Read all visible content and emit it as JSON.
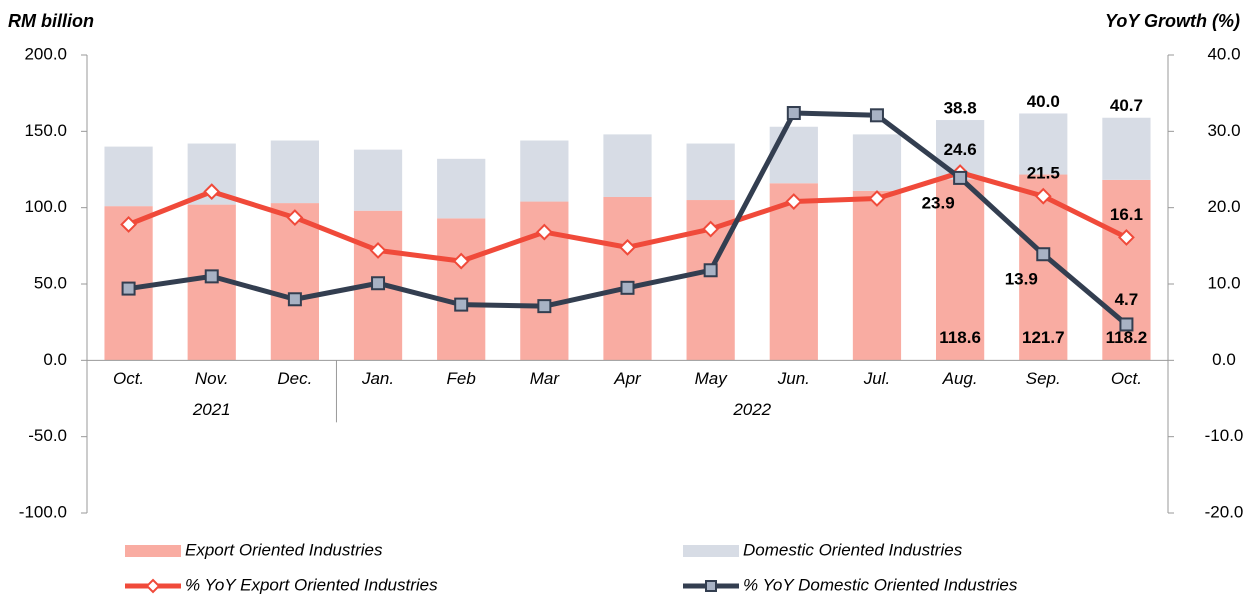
{
  "chart_data": {
    "type": "bar-line",
    "y_label": "RM billion",
    "y2_label": "YoY Growth (%)",
    "categories": [
      "Oct.",
      "Nov.",
      "Dec.",
      "Jan.",
      "Feb",
      "Mar",
      "Apr",
      "May",
      "Jun.",
      "Jul.",
      "Aug.",
      "Sep.",
      "Oct."
    ],
    "groups": [
      {
        "label": "2021",
        "start": 0,
        "end": 2
      },
      {
        "label": "2022",
        "start": 3,
        "end": 12
      }
    ],
    "ylim": [
      -100,
      200
    ],
    "yticks": [
      {
        "value": -100,
        "label": "-100.0"
      },
      {
        "value": -50,
        "label": "-50.0"
      },
      {
        "value": 0,
        "label": "0.0"
      },
      {
        "value": 50,
        "label": "50.0"
      },
      {
        "value": 100,
        "label": "100.0"
      },
      {
        "value": 150,
        "label": "150.0"
      },
      {
        "value": 200,
        "label": "200.0"
      }
    ],
    "y2lim": [
      -20,
      40
    ],
    "y2ticks": [
      {
        "value": -20,
        "label": "-20.0"
      },
      {
        "value": -10,
        "label": "-10.0"
      },
      {
        "value": 0,
        "label": "0.0"
      },
      {
        "value": 10,
        "label": "10.0"
      },
      {
        "value": 20,
        "label": "20.0"
      },
      {
        "value": 30,
        "label": "30.0"
      },
      {
        "value": 40,
        "label": "40.0"
      }
    ],
    "series": [
      {
        "name": "Export Oriented Industries",
        "kind": "bar",
        "color": "#f9aca2",
        "label_color": "#c00000",
        "values": [
          101,
          102,
          103,
          98,
          93,
          104,
          107,
          105,
          116,
          111,
          118.6,
          121.7,
          118.2
        ],
        "value_labels": [
          null,
          null,
          null,
          null,
          null,
          null,
          null,
          null,
          null,
          null,
          "118.6",
          "121.7",
          "118.2"
        ]
      },
      {
        "name": "Domestic Oriented Industries",
        "kind": "bar",
        "color": "#d7dce5",
        "label_color": "#2f3e63",
        "values": [
          39,
          40,
          41,
          40,
          39,
          40,
          41,
          37,
          37,
          37,
          38.8,
          40.0,
          40.7
        ],
        "value_labels": [
          null,
          null,
          null,
          null,
          null,
          null,
          null,
          null,
          null,
          null,
          "38.8",
          "40.0",
          "40.7"
        ]
      },
      {
        "name": "% YoY Export Oriented Industries",
        "kind": "line",
        "axis": "y2",
        "marker": "diamond",
        "color": "#f04a3a",
        "label_color": "#000000",
        "values": [
          17.8,
          22.1,
          18.7,
          14.4,
          13.0,
          16.8,
          14.8,
          17.2,
          20.8,
          21.2,
          24.6,
          21.5,
          16.1
        ],
        "value_labels": [
          null,
          null,
          null,
          null,
          null,
          null,
          null,
          null,
          null,
          null,
          "24.6",
          "21.5",
          "16.1"
        ]
      },
      {
        "name": "% YoY Domestic Oriented Industries",
        "kind": "line",
        "axis": "y2",
        "marker": "square",
        "color": "#333e50",
        "label_color": "#333e50",
        "values": [
          9.4,
          11.0,
          8.0,
          10.1,
          7.3,
          7.1,
          9.5,
          11.8,
          32.4,
          32.1,
          23.9,
          13.9,
          4.7
        ],
        "value_labels": [
          null,
          null,
          null,
          null,
          null,
          null,
          null,
          null,
          null,
          null,
          "23.9",
          "13.9",
          "4.7"
        ]
      }
    ]
  }
}
